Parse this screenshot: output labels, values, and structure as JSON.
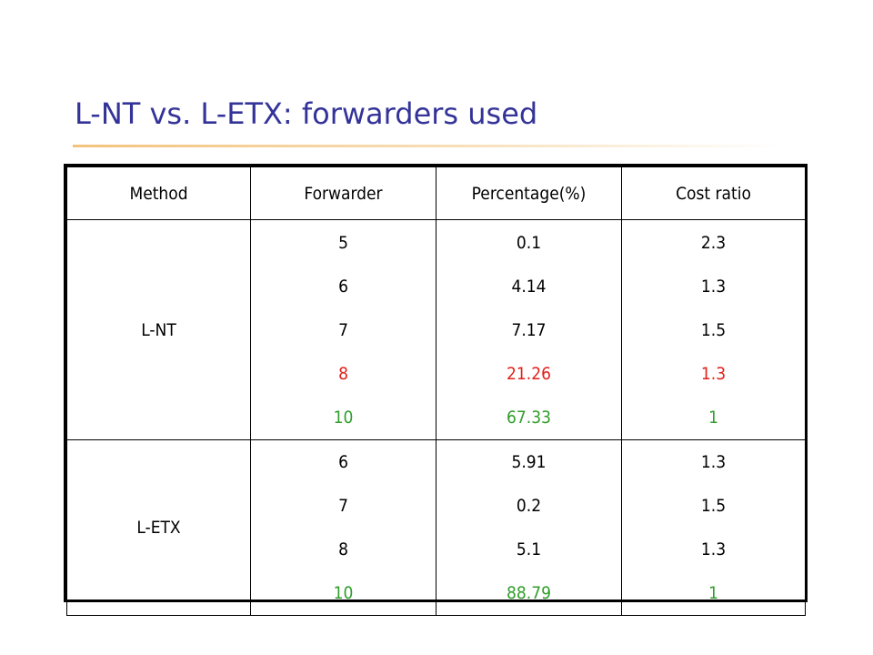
{
  "slide": {
    "title": "L-NT vs. L-ETX: forwarders used"
  },
  "table": {
    "headers": [
      "Method",
      "Forwarder",
      "Percentage(%)",
      "Cost ratio"
    ],
    "groups": [
      {
        "method": "L-NT",
        "rows": [
          {
            "forwarder": "5",
            "percentage": "0.1",
            "cost_ratio": "2.3",
            "highlight": "none"
          },
          {
            "forwarder": "6",
            "percentage": "4.14",
            "cost_ratio": "1.3",
            "highlight": "none"
          },
          {
            "forwarder": "7",
            "percentage": "7.17",
            "cost_ratio": "1.5",
            "highlight": "none"
          },
          {
            "forwarder": "8",
            "percentage": "21.26",
            "cost_ratio": "1.3",
            "highlight": "red"
          },
          {
            "forwarder": "10",
            "percentage": "67.33",
            "cost_ratio": "1",
            "highlight": "green"
          }
        ]
      },
      {
        "method": "L-ETX",
        "rows": [
          {
            "forwarder": "6",
            "percentage": "5.91",
            "cost_ratio": "1.3",
            "highlight": "none"
          },
          {
            "forwarder": "7",
            "percentage": "0.2",
            "cost_ratio": "1.5",
            "highlight": "none"
          },
          {
            "forwarder": "8",
            "percentage": "5.1",
            "cost_ratio": "1.3",
            "highlight": "none"
          },
          {
            "forwarder": "10",
            "percentage": "88.79",
            "cost_ratio": "1",
            "highlight": "green"
          }
        ]
      }
    ]
  },
  "colors": {
    "title": "#333399",
    "highlight_red": "#e0201b",
    "highlight_green": "#2f9e2a",
    "underline_accent": "#f3c37d"
  }
}
